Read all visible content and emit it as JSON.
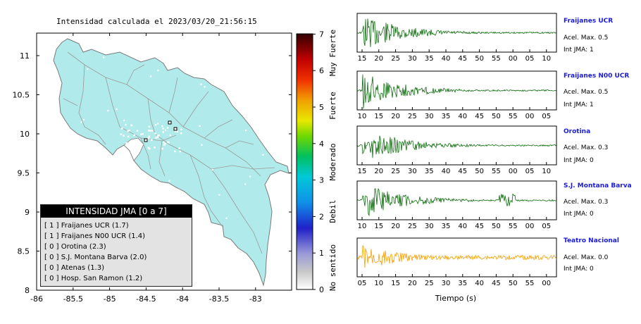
{
  "map": {
    "title": "Intensidad calculada el 2023/03/20_21:56:15",
    "lat_ticks": [
      "11",
      "10.5",
      "10",
      "9.5",
      "9",
      "8.5",
      "8"
    ],
    "lon_ticks": [
      "-86",
      "-85.5",
      "-85",
      "-84.5",
      "-84",
      "-83.5",
      "-83"
    ],
    "colors": {
      "land": "#b0eaea",
      "roads": "#9a9a9a",
      "border": "#7a7a7a"
    }
  },
  "colorbar": {
    "ticks": [
      "0",
      "1",
      "2",
      "3",
      "4",
      "5",
      "6",
      "7"
    ],
    "labels": [
      "No sentido",
      "Debil",
      "Moderado",
      "Fuerte",
      "Muy Fuerte"
    ]
  },
  "legend": {
    "title": "INTENSIDAD JMA [0 a 7]",
    "items": [
      "[ 1 ]  Fraijanes UCR (1.7)",
      "[ 1 ]  Fraijanes N00 UCR (1.4)",
      "[ 0 ]  Orotina (2.3)",
      "[ 0 ]  S.J. Montana Barva (2.0)",
      "[ 0 ]  Atenas (1.3)",
      "[ 0 ]  Hosp. San Ramon (1.2)"
    ]
  },
  "stations": [
    {
      "name": "Fraijanes UCR",
      "accel": "Acel. Max. 0.5",
      "jma": "Int JMA: 1",
      "ticks": [
        "15",
        "20",
        "25",
        "30",
        "35",
        "40",
        "45",
        "50",
        "55",
        "00",
        "05",
        "10"
      ],
      "color": "#0b6b0b"
    },
    {
      "name": "Fraijanes N00 UCR",
      "accel": "Acel. Max. 0.5",
      "jma": "Int JMA: 1",
      "ticks": [
        "10",
        "15",
        "20",
        "25",
        "30",
        "35",
        "40",
        "45",
        "50",
        "55",
        "00",
        "05"
      ],
      "color": "#0b6b0b"
    },
    {
      "name": "Orotina",
      "accel": "Acel. Max. 0.3",
      "jma": "Int JMA: 0",
      "ticks": [
        "15",
        "20",
        "25",
        "30",
        "35",
        "40",
        "45",
        "50",
        "55",
        "00",
        "05",
        "10"
      ],
      "color": "#0b6b0b"
    },
    {
      "name": "S.J. Montana Barva",
      "accel": "Acel. Max. 0.3",
      "jma": "Int JMA: 0",
      "ticks": [
        "10",
        "15",
        "20",
        "25",
        "30",
        "35",
        "40",
        "45",
        "50",
        "55",
        "00",
        "05"
      ],
      "color": "#0b6b0b"
    },
    {
      "name": "Teatro Nacional",
      "accel": "Acel. Max. 0.0",
      "jma": "Int JMA: 0",
      "ticks": [
        "05",
        "10",
        "15",
        "20",
        "25",
        "30",
        "35",
        "40",
        "45",
        "50",
        "55",
        "00"
      ],
      "color": "#f5a000"
    }
  ],
  "time_axis_label": "Tiempo (s)"
}
